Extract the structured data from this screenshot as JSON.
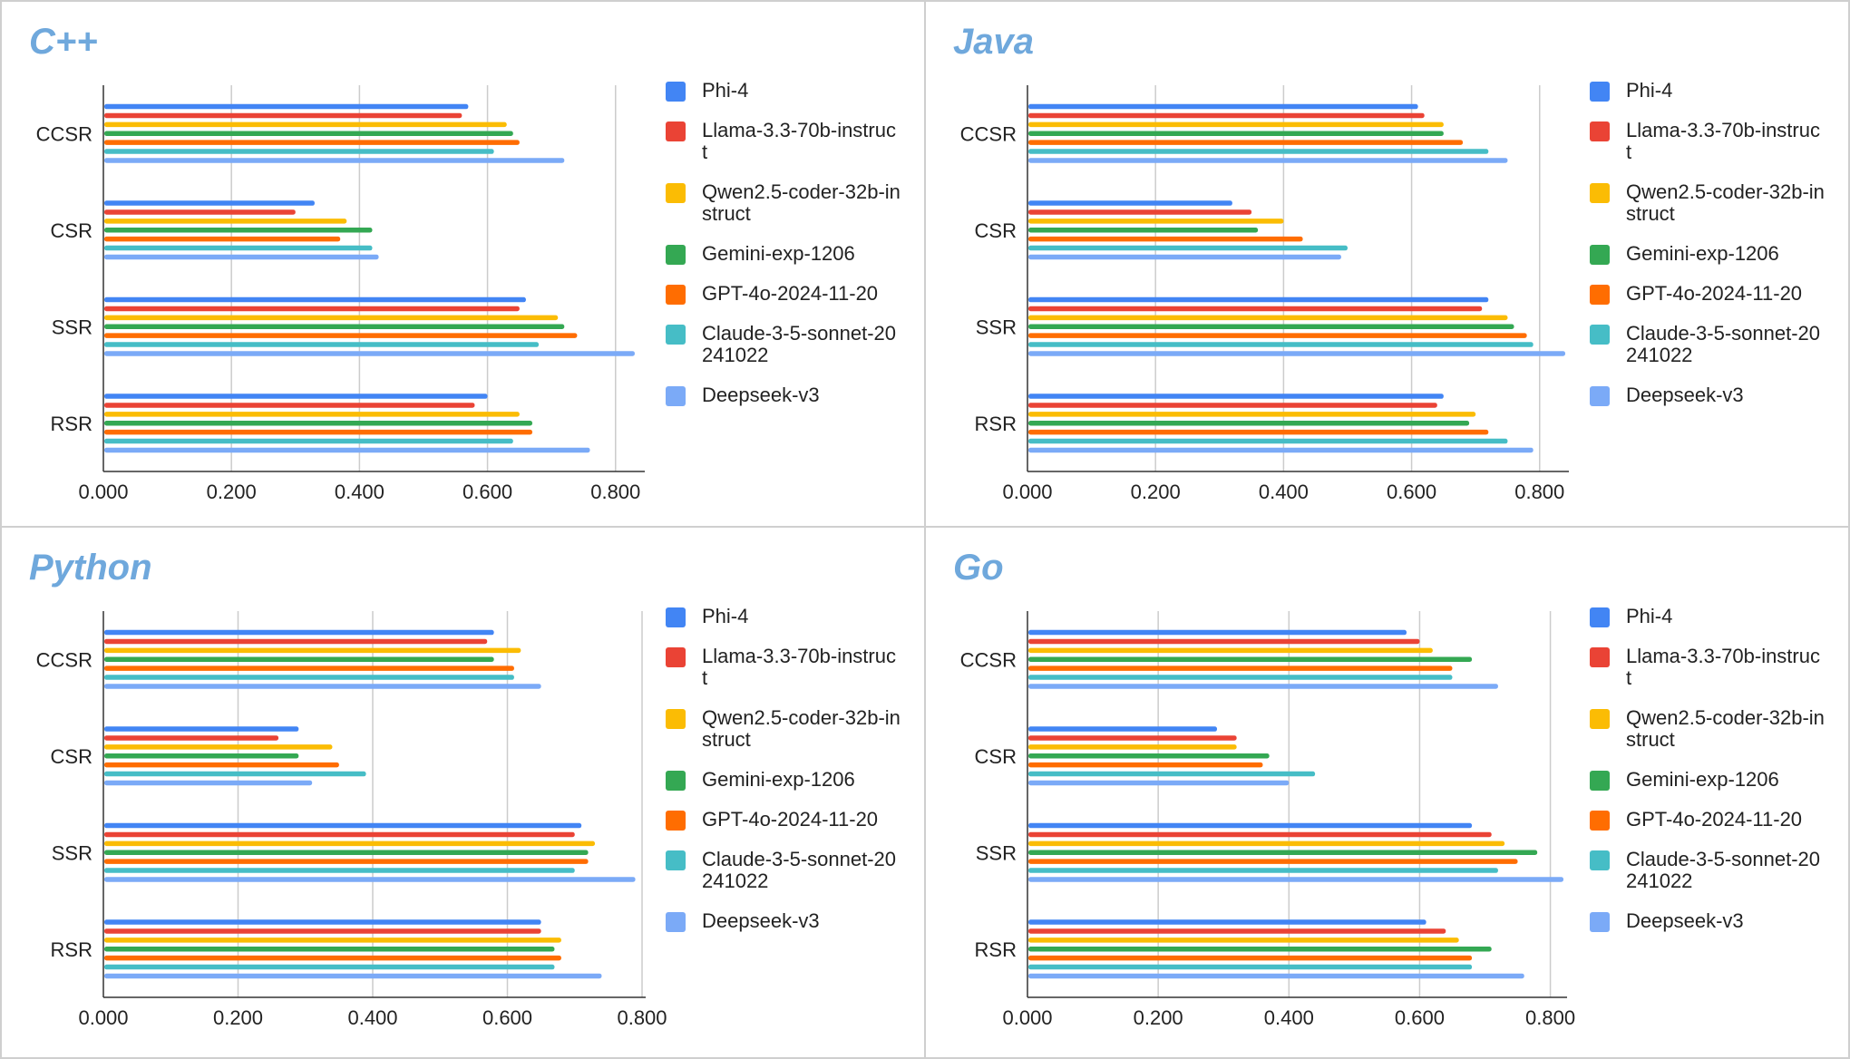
{
  "chart_data": [
    {
      "type": "bar",
      "orientation": "horizontal",
      "title": "C++",
      "categories": [
        "CCSR",
        "CSR",
        "SSR",
        "RSR"
      ],
      "xlim": [
        0,
        0.84
      ],
      "xticks": [
        "0.000",
        "0.200",
        "0.400",
        "0.600",
        "0.800"
      ],
      "grid": true,
      "legend": "right",
      "series": [
        {
          "name": "Phi-4",
          "color": "#4285f4",
          "values": [
            0.57,
            0.33,
            0.66,
            0.6
          ]
        },
        {
          "name": "Llama-3.3-70b-instruct",
          "color": "#ea4335",
          "values": [
            0.56,
            0.3,
            0.65,
            0.58
          ]
        },
        {
          "name": "Qwen2.5-coder-32b-instruct",
          "color": "#fbbc04",
          "values": [
            0.63,
            0.38,
            0.71,
            0.65
          ]
        },
        {
          "name": "Gemini-exp-1206",
          "color": "#34a853",
          "values": [
            0.64,
            0.42,
            0.72,
            0.67
          ]
        },
        {
          "name": "GPT-4o-2024-11-20",
          "color": "#ff6d01",
          "values": [
            0.65,
            0.37,
            0.74,
            0.67
          ]
        },
        {
          "name": "Claude-3-5-sonnet-20241022",
          "color": "#46bdc6",
          "values": [
            0.61,
            0.42,
            0.68,
            0.64
          ]
        },
        {
          "name": "Deepseek-v3",
          "color": "#7baaf7",
          "values": [
            0.72,
            0.43,
            0.83,
            0.76
          ]
        }
      ]
    },
    {
      "type": "bar",
      "orientation": "horizontal",
      "title": "Java",
      "categories": [
        "CCSR",
        "CSR",
        "SSR",
        "RSR"
      ],
      "xlim": [
        0,
        0.84
      ],
      "xticks": [
        "0.000",
        "0.200",
        "0.400",
        "0.600",
        "0.800"
      ],
      "grid": true,
      "legend": "right",
      "series": [
        {
          "name": "Phi-4",
          "color": "#4285f4",
          "values": [
            0.61,
            0.32,
            0.72,
            0.65
          ]
        },
        {
          "name": "Llama-3.3-70b-instruct",
          "color": "#ea4335",
          "values": [
            0.62,
            0.35,
            0.71,
            0.64
          ]
        },
        {
          "name": "Qwen2.5-coder-32b-instruct",
          "color": "#fbbc04",
          "values": [
            0.65,
            0.4,
            0.75,
            0.7
          ]
        },
        {
          "name": "Gemini-exp-1206",
          "color": "#34a853",
          "values": [
            0.65,
            0.36,
            0.76,
            0.69
          ]
        },
        {
          "name": "GPT-4o-2024-11-20",
          "color": "#ff6d01",
          "values": [
            0.68,
            0.43,
            0.78,
            0.72
          ]
        },
        {
          "name": "Claude-3-5-sonnet-20241022",
          "color": "#46bdc6",
          "values": [
            0.72,
            0.5,
            0.79,
            0.75
          ]
        },
        {
          "name": "Deepseek-v3",
          "color": "#7baaf7",
          "values": [
            0.75,
            0.49,
            0.84,
            0.79
          ]
        }
      ]
    },
    {
      "type": "bar",
      "orientation": "horizontal",
      "title": "Python",
      "categories": [
        "CCSR",
        "CSR",
        "SSR",
        "RSR"
      ],
      "xlim": [
        0,
        0.8
      ],
      "xticks": [
        "0.000",
        "0.200",
        "0.400",
        "0.600",
        "0.800"
      ],
      "grid": true,
      "legend": "right",
      "series": [
        {
          "name": "Phi-4",
          "color": "#4285f4",
          "values": [
            0.58,
            0.29,
            0.71,
            0.65
          ]
        },
        {
          "name": "Llama-3.3-70b-instruct",
          "color": "#ea4335",
          "values": [
            0.57,
            0.26,
            0.7,
            0.65
          ]
        },
        {
          "name": "Qwen2.5-coder-32b-instruct",
          "color": "#fbbc04",
          "values": [
            0.62,
            0.34,
            0.73,
            0.68
          ]
        },
        {
          "name": "Gemini-exp-1206",
          "color": "#34a853",
          "values": [
            0.58,
            0.29,
            0.72,
            0.67
          ]
        },
        {
          "name": "GPT-4o-2024-11-20",
          "color": "#ff6d01",
          "values": [
            0.61,
            0.35,
            0.72,
            0.68
          ]
        },
        {
          "name": "Claude-3-5-sonnet-20241022",
          "color": "#46bdc6",
          "values": [
            0.61,
            0.39,
            0.7,
            0.67
          ]
        },
        {
          "name": "Deepseek-v3",
          "color": "#7baaf7",
          "values": [
            0.65,
            0.31,
            0.79,
            0.74
          ]
        }
      ]
    },
    {
      "type": "bar",
      "orientation": "horizontal",
      "title": "Go",
      "categories": [
        "CCSR",
        "CSR",
        "SSR",
        "RSR"
      ],
      "xlim": [
        0,
        0.82
      ],
      "xticks": [
        "0.000",
        "0.200",
        "0.400",
        "0.600",
        "0.800"
      ],
      "grid": true,
      "legend": "right",
      "series": [
        {
          "name": "Phi-4",
          "color": "#4285f4",
          "values": [
            0.58,
            0.29,
            0.68,
            0.61
          ]
        },
        {
          "name": "Llama-3.3-70b-instruct",
          "color": "#ea4335",
          "values": [
            0.6,
            0.32,
            0.71,
            0.64
          ]
        },
        {
          "name": "Qwen2.5-coder-32b-instruct",
          "color": "#fbbc04",
          "values": [
            0.62,
            0.32,
            0.73,
            0.66
          ]
        },
        {
          "name": "Gemini-exp-1206",
          "color": "#34a853",
          "values": [
            0.68,
            0.37,
            0.78,
            0.71
          ]
        },
        {
          "name": "GPT-4o-2024-11-20",
          "color": "#ff6d01",
          "values": [
            0.65,
            0.36,
            0.75,
            0.68
          ]
        },
        {
          "name": "Claude-3-5-sonnet-20241022",
          "color": "#46bdc6",
          "values": [
            0.65,
            0.44,
            0.72,
            0.68
          ]
        },
        {
          "name": "Deepseek-v3",
          "color": "#7baaf7",
          "values": [
            0.72,
            0.4,
            0.82,
            0.76
          ]
        }
      ]
    }
  ]
}
